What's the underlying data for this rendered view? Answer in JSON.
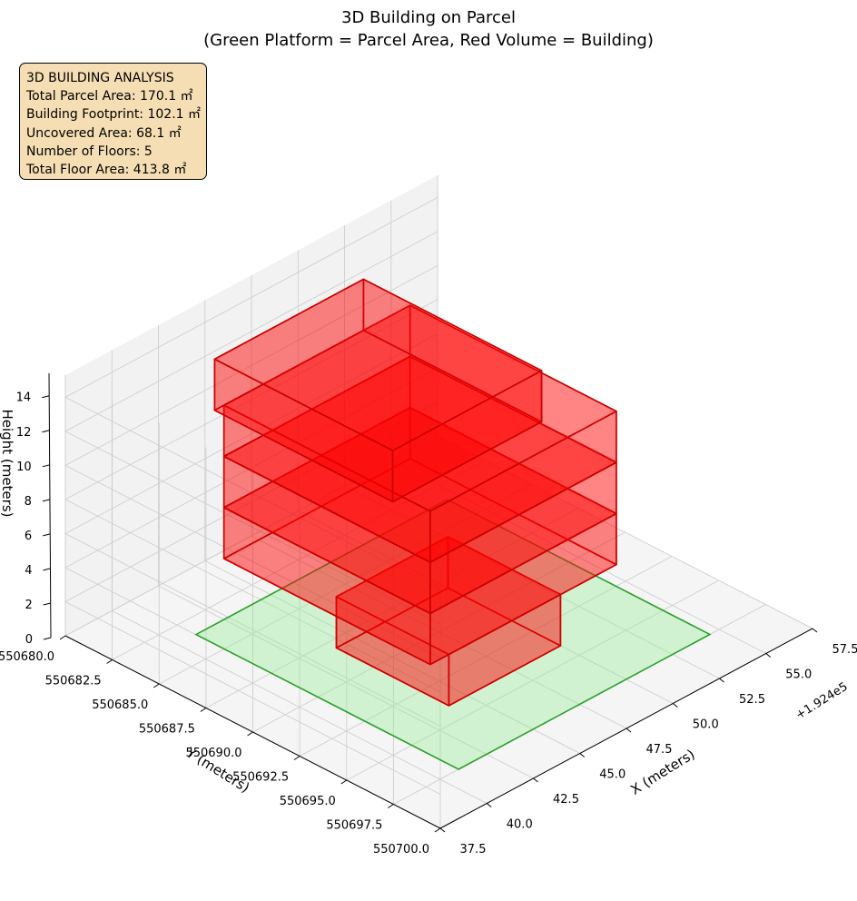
{
  "chart_data": {
    "type": "3d-volume",
    "title": "3D Building on Parcel",
    "subtitle": "(Green Platform = Parcel Area, Red Volume = Building)",
    "xlabel": "X (meters)",
    "ylabel": "Y (meters)",
    "zlabel": "Height (meters)",
    "x_offset_label": "+1.924e5",
    "x_ticks": [
      "37.5",
      "40.0",
      "42.5",
      "45.0",
      "47.5",
      "50.0",
      "52.5",
      "55.0",
      "57.5"
    ],
    "y_ticks": [
      "550680.0",
      "550682.5",
      "550685.0",
      "550687.5",
      "550690.0",
      "550692.5",
      "550695.0",
      "550697.5",
      "550700.0"
    ],
    "z_ticks": [
      "0",
      "2",
      "4",
      "6",
      "8",
      "10",
      "12",
      "14"
    ],
    "xlim": [
      37.5,
      57.5
    ],
    "ylim": [
      550680.0,
      550700.0
    ],
    "zlim": [
      0,
      15
    ],
    "grid": true,
    "parcel_color": "#90ee90",
    "parcel_edge_color": "#2ca02c",
    "building_color": "#ff0000",
    "building_edge_color": "#cc0000",
    "floors": [
      {
        "floor": 1,
        "z": [
          0,
          3
        ],
        "x": [
          44.0,
          50.0
        ],
        "y": [
          550688.0,
          550694.0
        ]
      },
      {
        "floor": 2,
        "z": [
          3,
          6
        ],
        "x": [
          43.0,
          53.0
        ],
        "y": [
          550683.0,
          550694.0
        ]
      },
      {
        "floor": 3,
        "z": [
          6,
          9
        ],
        "x": [
          43.0,
          53.0
        ],
        "y": [
          550683.0,
          550694.0
        ]
      },
      {
        "floor": 4,
        "z": [
          9,
          12
        ],
        "x": [
          43.0,
          53.0
        ],
        "y": [
          550683.0,
          550694.0
        ]
      },
      {
        "floor": 5,
        "z": [
          12,
          15
        ],
        "x": [
          42.5,
          50.5
        ],
        "y": [
          550683.0,
          550692.5
        ]
      }
    ],
    "parcel": {
      "x": [
        41.0,
        54.5
      ],
      "y": [
        550683.5,
        550697.5
      ],
      "z": 0
    }
  },
  "info_box": {
    "title": "3D BUILDING ANALYSIS",
    "lines": [
      "Total Parcel Area: 170.1 ㎡",
      "Building Footprint: 102.1 ㎡",
      "Uncovered Area: 68.1 ㎡",
      "Number of Floors: 5",
      "Total Floor Area: 413.8 ㎡"
    ]
  }
}
